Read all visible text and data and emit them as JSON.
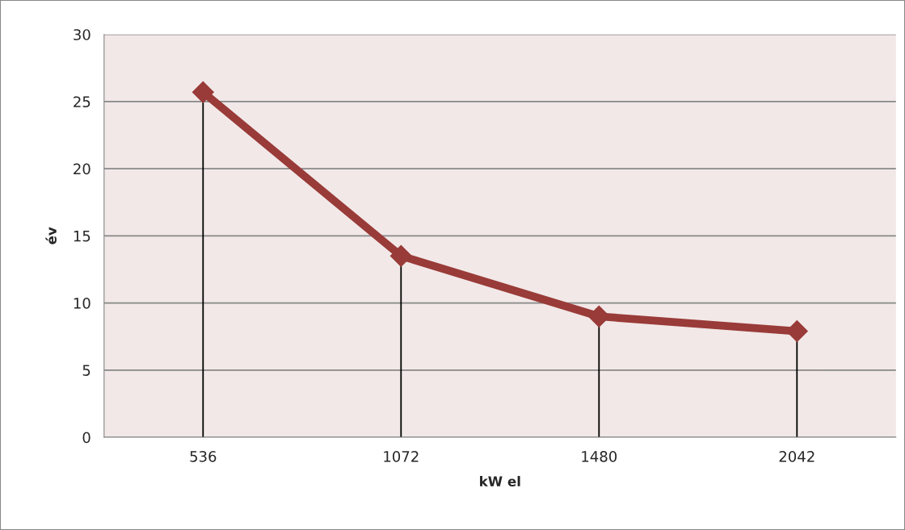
{
  "chart_data": {
    "type": "line",
    "xlabel": "kW el",
    "ylabel": "év",
    "categories": [
      "536",
      "1072",
      "1480",
      "2042"
    ],
    "series": [
      {
        "color": "#993b38",
        "values": [
          25.7,
          13.5,
          9.0,
          7.9
        ],
        "errors": [
          [
            0,
            25.7
          ],
          [
            0,
            13.5
          ],
          [
            0,
            9.0
          ],
          [
            0,
            7.9
          ]
        ]
      }
    ],
    "ylim": [
      0,
      30
    ],
    "yticks": [
      0,
      5,
      10,
      15,
      20,
      25,
      30
    ],
    "grid": "y",
    "marker": "diamond",
    "line_style": "solid"
  }
}
